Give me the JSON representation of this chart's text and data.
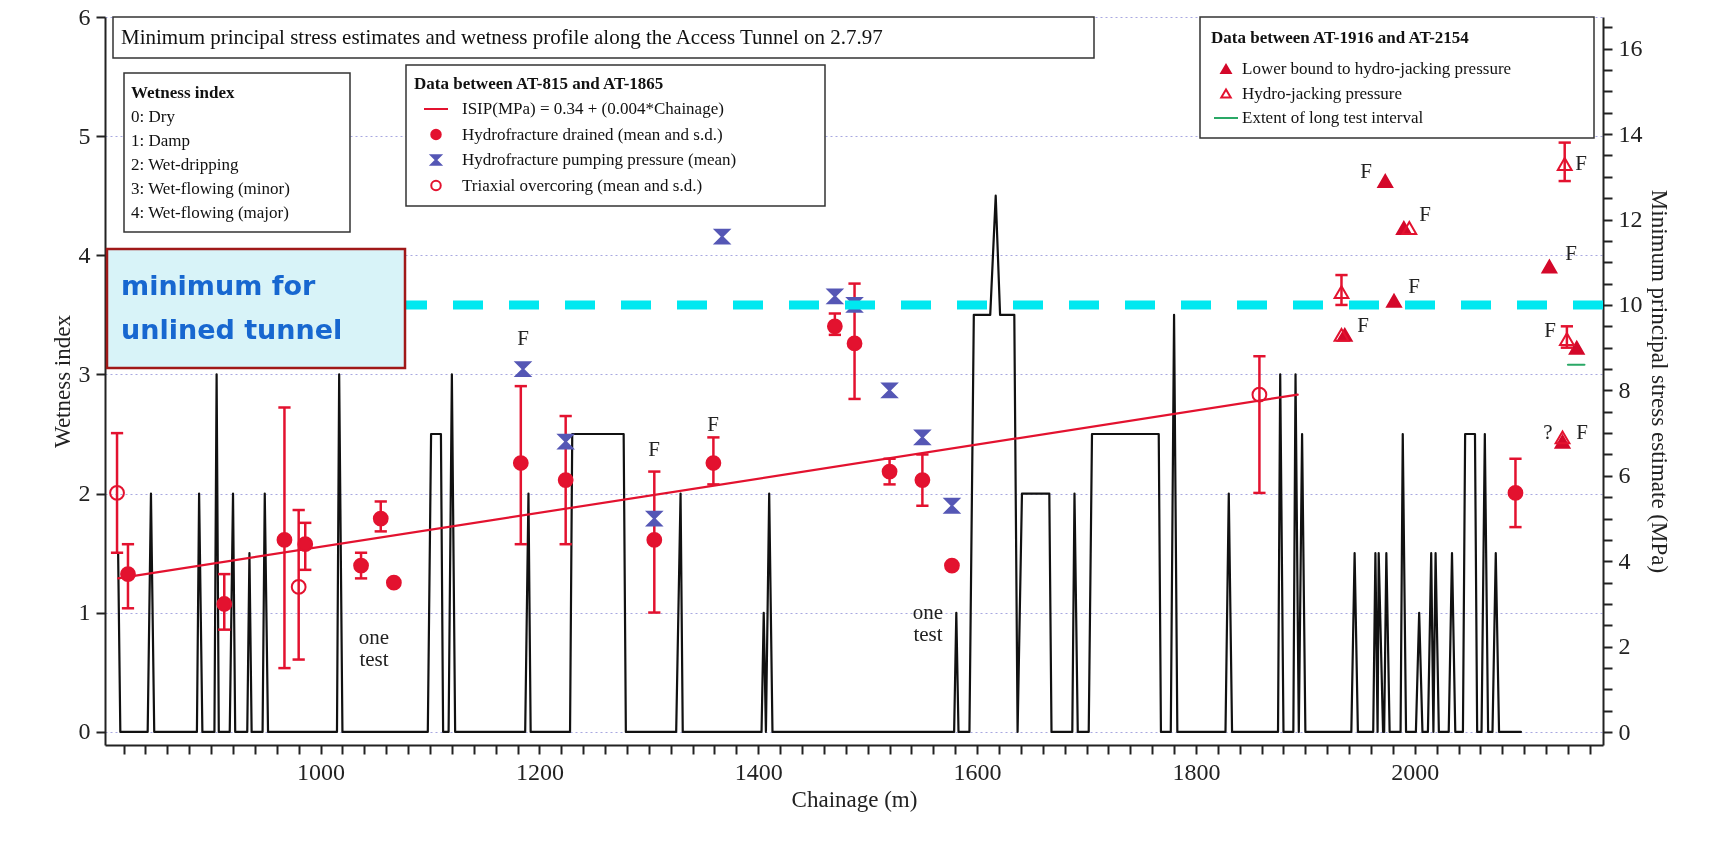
{
  "chart_data": {
    "type": "scatter",
    "title": "Minimum principal stress estimates and wetness profile along the Access Tunnel on 2.7.97",
    "xlabel": "Chainage (m)",
    "ylabel": "Wetness index",
    "y2label": "Minimum principal stress estimate (MPa)",
    "legend_title": "Data between AT-815 and AT-1865",
    "legend": "top",
    "grid": "y",
    "xlim": [
      803,
      2172
    ],
    "ylim": [
      -0.11,
      6
    ],
    "y2lim": [
      -0.3,
      16.74
    ],
    "xticks": [
      {
        "value": 820,
        "label": null
      },
      {
        "value": 840,
        "label": null
      },
      {
        "value": 860,
        "label": null
      },
      {
        "value": 880,
        "label": null
      },
      {
        "value": 900,
        "label": null
      },
      {
        "value": 920,
        "label": null
      },
      {
        "value": 940,
        "label": null
      },
      {
        "value": 960,
        "label": null
      },
      {
        "value": 980,
        "label": null
      },
      1000,
      {
        "value": 1020,
        "label": null
      },
      {
        "value": 1040,
        "label": null
      },
      {
        "value": 1060,
        "label": null
      },
      {
        "value": 1080,
        "label": null
      },
      {
        "value": 1100,
        "label": null
      },
      {
        "value": 1120,
        "label": null
      },
      {
        "value": 1140,
        "label": null
      },
      {
        "value": 1160,
        "label": null
      },
      {
        "value": 1180,
        "label": null
      },
      1200,
      {
        "value": 1220,
        "label": null
      },
      {
        "value": 1240,
        "label": null
      },
      {
        "value": 1260,
        "label": null
      },
      {
        "value": 1280,
        "label": null
      },
      {
        "value": 1300,
        "label": null
      },
      {
        "value": 1320,
        "label": null
      },
      {
        "value": 1340,
        "label": null
      },
      {
        "value": 1360,
        "label": null
      },
      {
        "value": 1380,
        "label": null
      },
      1400,
      {
        "value": 1420,
        "label": null
      },
      {
        "value": 1440,
        "label": null
      },
      {
        "value": 1460,
        "label": null
      },
      {
        "value": 1480,
        "label": null
      },
      {
        "value": 1500,
        "label": null
      },
      {
        "value": 1520,
        "label": null
      },
      {
        "value": 1540,
        "label": null
      },
      {
        "value": 1560,
        "label": null
      },
      {
        "value": 1580,
        "label": null
      },
      1600,
      {
        "value": 1620,
        "label": null
      },
      {
        "value": 1640,
        "label": null
      },
      {
        "value": 1660,
        "label": null
      },
      {
        "value": 1680,
        "label": null
      },
      {
        "value": 1700,
        "label": null
      },
      {
        "value": 1720,
        "label": null
      },
      {
        "value": 1740,
        "label": null
      },
      {
        "value": 1760,
        "label": null
      },
      {
        "value": 1780,
        "label": null
      },
      1800,
      {
        "value": 1820,
        "label": null
      },
      {
        "value": 1840,
        "label": null
      },
      {
        "value": 1860,
        "label": null
      },
      {
        "value": 1880,
        "label": null
      },
      {
        "value": 1900,
        "label": null
      },
      {
        "value": 1920,
        "label": null
      },
      {
        "value": 1940,
        "label": null
      },
      {
        "value": 1960,
        "label": null
      },
      {
        "value": 1980,
        "label": null
      },
      2000,
      {
        "value": 2020,
        "label": null
      },
      {
        "value": 2040,
        "label": null
      },
      {
        "value": 2060,
        "label": null
      },
      {
        "value": 2080,
        "label": null
      },
      {
        "value": 2100,
        "label": null
      },
      {
        "value": 2120,
        "label": null
      },
      {
        "value": 2140,
        "label": null
      },
      {
        "value": 2160,
        "label": null
      }
    ],
    "yticks": [
      0,
      1,
      2,
      3,
      4,
      5,
      6
    ],
    "y2ticks": [
      0,
      {
        "value": 0.5,
        "label": null
      },
      {
        "value": 1,
        "label": null
      },
      {
        "value": 1.5,
        "label": null
      },
      2,
      {
        "value": 2.5,
        "label": null
      },
      {
        "value": 3,
        "label": null
      },
      {
        "value": 3.5,
        "label": null
      },
      4,
      {
        "value": 4.5,
        "label": null
      },
      {
        "value": 5,
        "label": null
      },
      {
        "value": 5.5,
        "label": null
      },
      6,
      {
        "value": 6.5,
        "label": null
      },
      {
        "value": 7,
        "label": null
      },
      {
        "value": 7.5,
        "label": null
      },
      8,
      {
        "value": 8.5,
        "label": null
      },
      {
        "value": 9,
        "label": null
      },
      {
        "value": 9.5,
        "label": null
      },
      10,
      {
        "value": 10.5,
        "label": null
      },
      {
        "value": 11,
        "label": null
      },
      {
        "value": 11.5,
        "label": null
      },
      12,
      {
        "value": 12.5,
        "label": null
      },
      {
        "value": 13,
        "label": null
      },
      {
        "value": 13.5,
        "label": null
      },
      14,
      {
        "value": 14.5,
        "label": null
      },
      {
        "value": 15,
        "label": null
      },
      {
        "value": 15.5,
        "label": null
      },
      16,
      {
        "value": 16.5,
        "label": null
      }
    ],
    "ref_lines": [
      {
        "axis": "y2",
        "value": 10,
        "label": "minimum for\nunlined tunnel",
        "color": "#00e8f0",
        "line_style": "dashed"
      }
    ],
    "series": [
      {
        "type": "line",
        "color": "#111111",
        "x": [
          815,
          817,
          842,
          845,
          848,
          887,
          889,
          892,
          903,
          905,
          907,
          917,
          920,
          922,
          933,
          935,
          937,
          947,
          949,
          952,
          1015,
          1017,
          1020,
          1098,
          1101,
          1110,
          1112,
          1117,
          1120,
          1123,
          1187,
          1190,
          1192,
          1228,
          1230,
          1277,
          1279,
          1325,
          1329,
          1331,
          1403,
          1405,
          1407,
          1410,
          1413,
          1579,
          1581,
          1583,
          1593,
          1597,
          1612,
          1617,
          1621,
          1634,
          1637,
          1641,
          1666,
          1668,
          1687,
          1689,
          1692,
          1702,
          1705,
          1766,
          1768,
          1777,
          1780,
          1783,
          1827,
          1830,
          1833,
          1875,
          1877,
          1880,
          1889,
          1891,
          1894,
          1897,
          1900,
          1942,
          1945,
          1948,
          1962,
          1964,
          1966,
          1967,
          1971,
          1972,
          1974,
          1977,
          1987,
          1989,
          1992,
          2001,
          2004,
          2007,
          2012,
          2015,
          2017,
          2019,
          2022,
          2031,
          2034,
          2037,
          2044,
          2046,
          2055,
          2057,
          2061,
          2064,
          2067,
          2071,
          2074,
          2077,
          2097
        ],
        "values": [
          1.5,
          0,
          0,
          2,
          0,
          0,
          2,
          0,
          0,
          3,
          0,
          0,
          2,
          0,
          0,
          1.5,
          0,
          0,
          2,
          0,
          0,
          3,
          0,
          0,
          2.5,
          2.5,
          0,
          0,
          3,
          0,
          0,
          2,
          0,
          0,
          2.5,
          2.5,
          0,
          0,
          2,
          0,
          0,
          1,
          0,
          2,
          0,
          0,
          1,
          0,
          0,
          3.5,
          3.5,
          4.5,
          3.5,
          3.5,
          0,
          2,
          2,
          0,
          0,
          2,
          0,
          0,
          2.5,
          2.5,
          0,
          0,
          3.5,
          0,
          0,
          2,
          0,
          0,
          3,
          0,
          0,
          3,
          0,
          2.5,
          0,
          0,
          1.5,
          0,
          0,
          1.5,
          0,
          1.5,
          0,
          0,
          1.5,
          0,
          0,
          2.5,
          0,
          0,
          1,
          0,
          0,
          1.5,
          0,
          1.5,
          0,
          0,
          1.5,
          0,
          0,
          2.5,
          2.5,
          0,
          0,
          2.5,
          0,
          0,
          1.5,
          0,
          0
        ]
      },
      {
        "name": "ISIP(MPa) = 0.34 + (0.004*Chainage)",
        "type": "line",
        "axis": "y2",
        "color": "#e3122f",
        "x": [
          815,
          1893
        ],
        "values": [
          3.6,
          7.9
        ]
      },
      {
        "name": "Hydrofracture drained (mean and s.d.)",
        "axis": "y2",
        "marker": "circle",
        "color": "#e3122f",
        "x": [
          824,
          912,
          967,
          986,
          1037,
          1055,
          1067,
          1183,
          1224,
          1305,
          1359,
          1470,
          1488,
          1520,
          1550,
          1577,
          2092
        ],
        "values": [
          3.7,
          3.0,
          4.5,
          4.4,
          3.9,
          5.0,
          3.5,
          6.3,
          5.9,
          4.5,
          6.3,
          9.5,
          9.1,
          6.1,
          5.9,
          3.9,
          5.6
        ],
        "errors": [
          [
            2.9,
            4.4
          ],
          [
            2.4,
            3.7
          ],
          [
            1.5,
            7.6
          ],
          [
            3.8,
            4.9
          ],
          [
            3.6,
            4.2
          ],
          [
            4.7,
            5.4
          ],
          null,
          [
            4.4,
            8.1
          ],
          [
            4.4,
            7.4
          ],
          [
            2.8,
            6.1
          ],
          [
            5.8,
            6.9
          ],
          [
            9.3,
            9.8
          ],
          [
            7.8,
            10.5
          ],
          [
            5.8,
            6.4
          ],
          [
            5.3,
            6.5
          ],
          null,
          [
            4.8,
            6.4
          ]
        ]
      },
      {
        "name": "Hydrofracture pumping pressure (mean)",
        "axis": "y2",
        "marker": "diamond",
        "color": "#5557b5",
        "x": [
          1185,
          1224,
          1305,
          1367,
          1470,
          1488,
          1520,
          1550,
          1577
        ],
        "values": [
          8.5,
          6.8,
          5.0,
          11.6,
          10.2,
          10.0,
          8.0,
          6.9,
          5.3
        ]
      },
      {
        "name": "Triaxial overcoring (mean and s.d.)",
        "axis": "y2",
        "marker": "circle",
        "color": "#e3122f",
        "x": [
          814,
          980,
          1858
        ],
        "values": [
          5.6,
          3.4,
          7.9
        ],
        "errors": [
          [
            4.2,
            7.0
          ],
          [
            1.7,
            5.2
          ],
          [
            5.6,
            8.8
          ]
        ]
      },
      {
        "name": "Lower bound to hydro-jacking pressure",
        "axis": "y2",
        "marker": "triangle",
        "color": "#d4082a",
        "x": [
          1936,
          1973,
          1981,
          1990,
          2123,
          2135,
          2148
        ],
        "values": [
          9.3,
          12.9,
          10.1,
          11.8,
          10.9,
          6.8,
          9.0
        ]
      },
      {
        "name": "Hydro-jacking pressure",
        "axis": "y2",
        "marker": "triangle",
        "color": "#e3122f",
        "x": [
          1933,
          1933,
          1995,
          2137,
          2139,
          2135
        ],
        "values": [
          10.3,
          9.3,
          11.8,
          13.3,
          9.2,
          6.9
        ],
        "errors": [
          [
            10.0,
            10.7
          ],
          null,
          null,
          [
            12.9,
            13.8
          ],
          [
            9.0,
            9.5
          ],
          null
        ]
      },
      {
        "name": "Extent of long test interval",
        "type": "line",
        "axis": "y2",
        "color": "#2aa866",
        "x": [
          2140,
          2155
        ],
        "values": [
          8.6,
          8.6
        ]
      }
    ],
    "annotations": [
      "Wetness index",
      "0:  Dry",
      "1:  Damp",
      "2:  Wet-dripping",
      "3:  Wet-flowing (minor)",
      "4:  Wet-flowing (major)",
      "Data between AT-1916 and AT-2154",
      "F",
      "F",
      "F",
      "F",
      "F",
      "F",
      "F",
      "F",
      "F",
      "F",
      "F",
      "?",
      "one\ntest",
      "one\ntest"
    ]
  }
}
